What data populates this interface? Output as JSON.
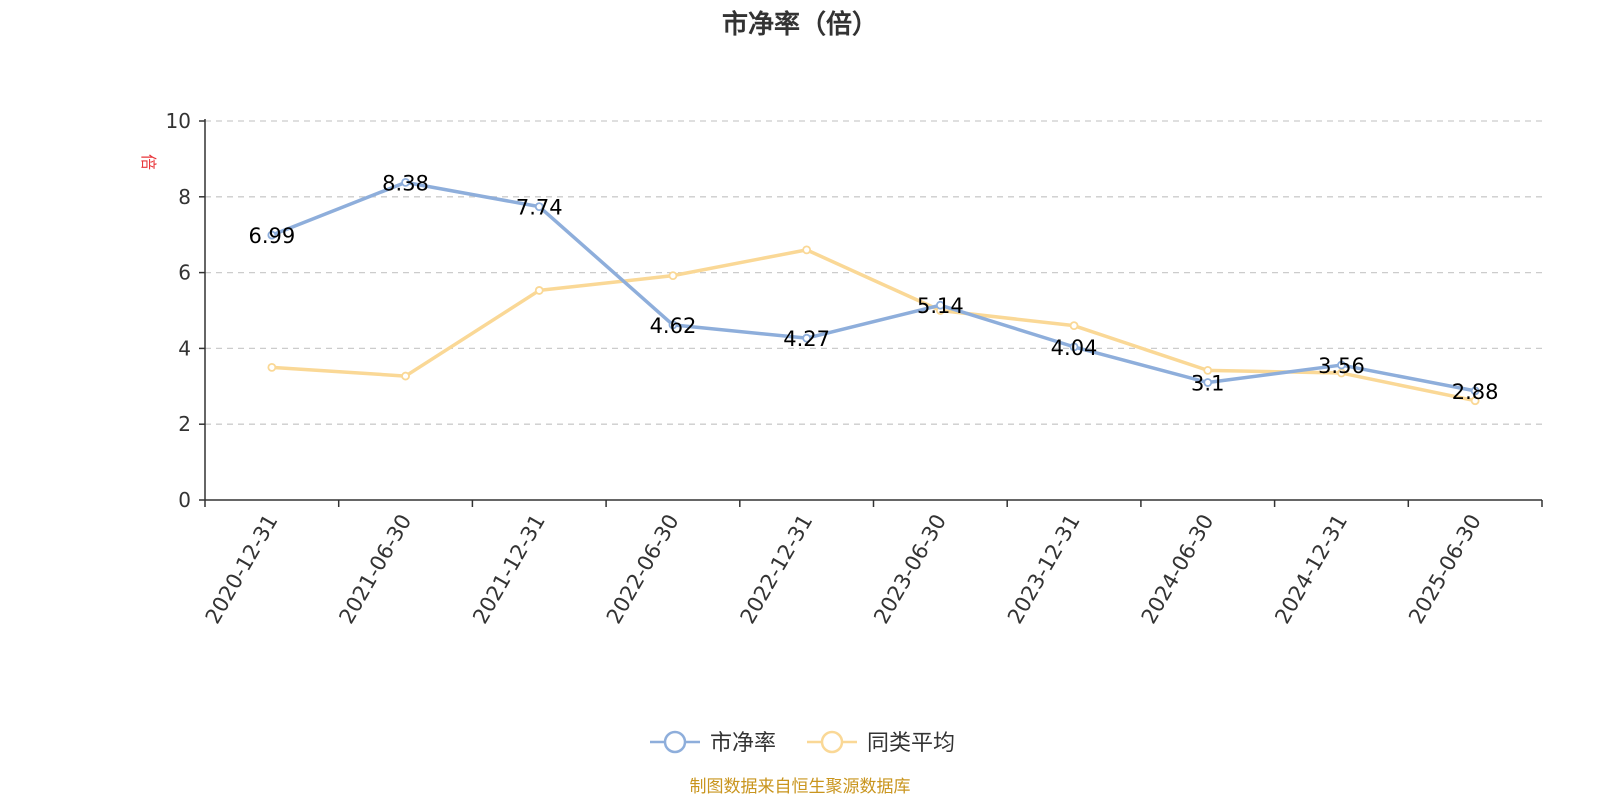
{
  "colors": {
    "series_pb": "#8eaedb",
    "series_avg": "#fad896",
    "axis": "#333333",
    "grid": "#cccccc",
    "unit_label": "#e8353a",
    "source_text": "#c9951e"
  },
  "chart_data": {
    "type": "line",
    "title": "市净率（倍）",
    "ylabel": "倍",
    "ylim": [
      0,
      10
    ],
    "yticks": [
      0,
      2,
      4,
      6,
      8,
      10
    ],
    "grid": true,
    "legend_position": "bottom-center",
    "categories": [
      "2020-12-31",
      "2021-06-30",
      "2021-12-31",
      "2022-06-30",
      "2022-12-31",
      "2023-06-30",
      "2023-12-31",
      "2024-06-30",
      "2024-12-31",
      "2025-06-30"
    ],
    "series": [
      {
        "name": "市净率",
        "values": [
          6.99,
          8.38,
          7.74,
          4.62,
          4.27,
          5.14,
          4.04,
          3.1,
          3.56,
          2.88
        ],
        "labels": [
          "6.99",
          "8.38",
          "7.74",
          "4.62",
          "4.27",
          "5.14",
          "4.04",
          "3.1",
          "3.56",
          "2.88"
        ],
        "color_key": "series_pb"
      },
      {
        "name": "同类平均",
        "values": [
          3.5,
          3.27,
          5.53,
          5.92,
          6.6,
          5.0,
          4.6,
          3.42,
          3.35,
          2.62
        ],
        "color_key": "series_avg"
      }
    ]
  },
  "footer": {
    "source": "制图数据来自恒生聚源数据库"
  }
}
